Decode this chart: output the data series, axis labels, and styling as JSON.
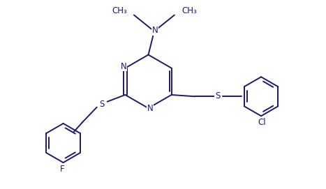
{
  "background_color": "#ffffff",
  "line_color": "#1a1a6e",
  "line_width": 1.4,
  "font_size": 8.5,
  "figsize": [
    4.67,
    2.71
  ],
  "dpi": 100,
  "xlim": [
    0,
    10
  ],
  "ylim": [
    0,
    5.8
  ]
}
